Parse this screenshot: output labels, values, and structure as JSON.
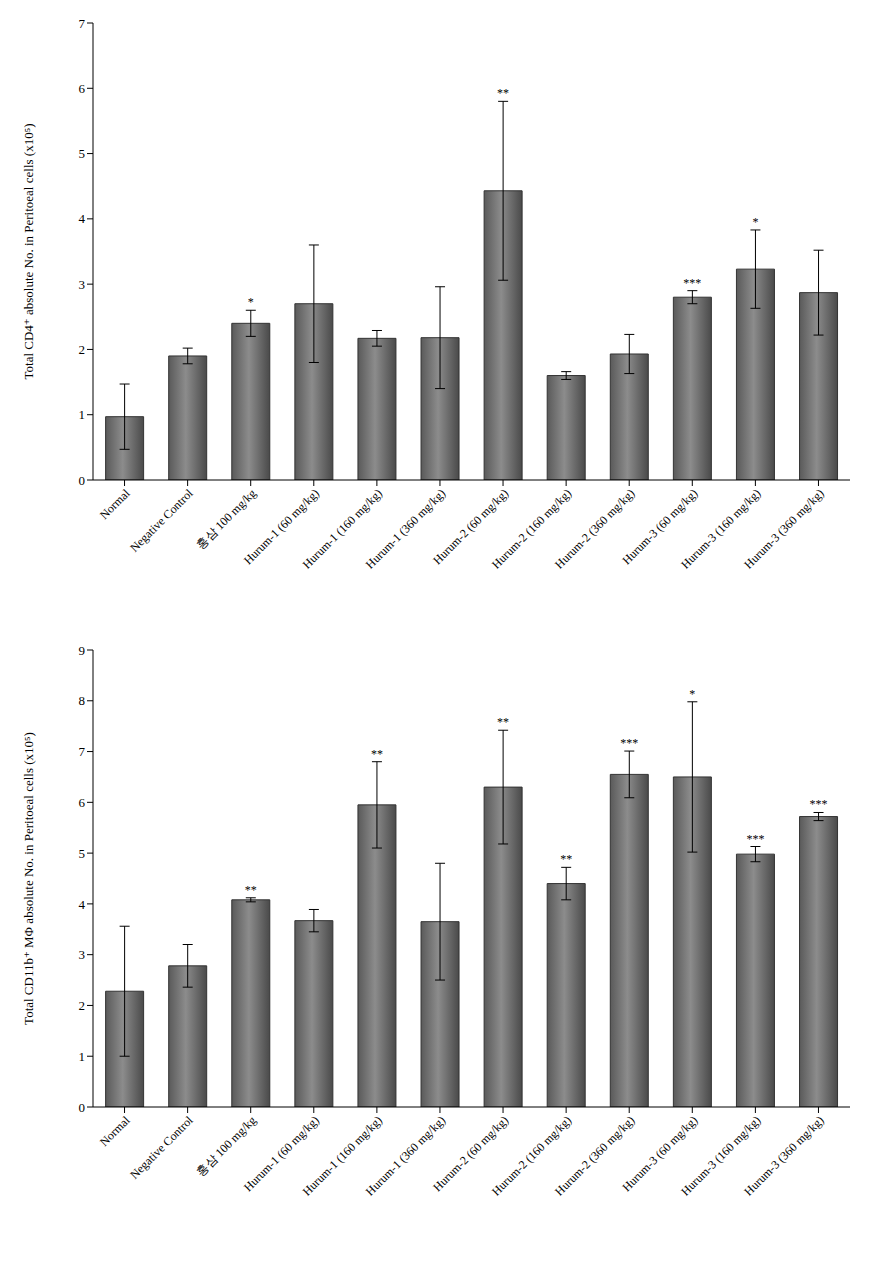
{
  "chart_data": [
    {
      "type": "bar",
      "y_label": "Total CD4⁺ absolute No. in Peritoeal cells (x10⁵)",
      "categories": [
        "Normal",
        "Negative Control",
        "홍삼 100 mg/kg",
        "Hurum-1 (60 mg/kg)",
        "Hurum-1 (160 mg/kg)",
        "Hurum-1 (360 mg/kg)",
        "Hurum-2 (60 mg/kg)",
        "Hurum-2 (160 mg/kg)",
        "Hurum-2 (360 mg/kg)",
        "Hurum-3 (60 mg/kg)",
        "Hurum-3 (160 mg/kg)",
        "Hurum-3 (360 mg/kg)"
      ],
      "values": [
        0.97,
        1.9,
        2.4,
        2.7,
        2.17,
        2.18,
        4.43,
        1.6,
        1.93,
        2.8,
        3.23,
        2.87
      ],
      "errors": [
        0.5,
        0.12,
        0.2,
        0.9,
        0.12,
        0.78,
        1.37,
        0.06,
        0.3,
        0.1,
        0.6,
        0.65
      ],
      "annotations": [
        null,
        null,
        "*",
        null,
        null,
        null,
        "**",
        null,
        null,
        "***",
        "*",
        null
      ],
      "color": "#8c8c8c",
      "ylim": [
        0,
        7
      ],
      "yticks": [
        0,
        1,
        2,
        3,
        4,
        5,
        6,
        7
      ]
    },
    {
      "type": "bar",
      "y_label": "Total CD11b⁺ MΦ absolute No. in Peritoeal cells (x10⁵)",
      "categories": [
        "Normal",
        "Negative Control",
        "홍삼 100 mg/kg",
        "Hurum-1 (60 mg/kg)",
        "Hurum-1 (160 mg/kg)",
        "Hurum-1 (360 mg/kg)",
        "Hurum-2 (60 mg/kg)",
        "Hurum-2 (160 mg/kg)",
        "Hurum-2 (360 mg/kg)",
        "Hurum-3 (60 mg/kg)",
        "Hurum-3 (160 mg/kg)",
        "Hurum-3 (360 mg/kg)"
      ],
      "values": [
        2.28,
        2.78,
        4.08,
        3.67,
        5.95,
        3.65,
        6.3,
        4.4,
        6.55,
        6.5,
        4.98,
        5.72
      ],
      "errors": [
        1.28,
        0.42,
        0.04,
        0.22,
        0.85,
        1.15,
        1.12,
        0.32,
        0.46,
        1.48,
        0.15,
        0.08
      ],
      "annotations": [
        null,
        null,
        "**",
        null,
        "**",
        null,
        "**",
        "**",
        "***",
        "*",
        "***",
        "***"
      ],
      "color": "#8c8c8c",
      "ylim": [
        0,
        9
      ],
      "yticks": [
        0,
        1,
        2,
        3,
        4,
        5,
        6,
        7,
        8,
        9
      ]
    }
  ]
}
